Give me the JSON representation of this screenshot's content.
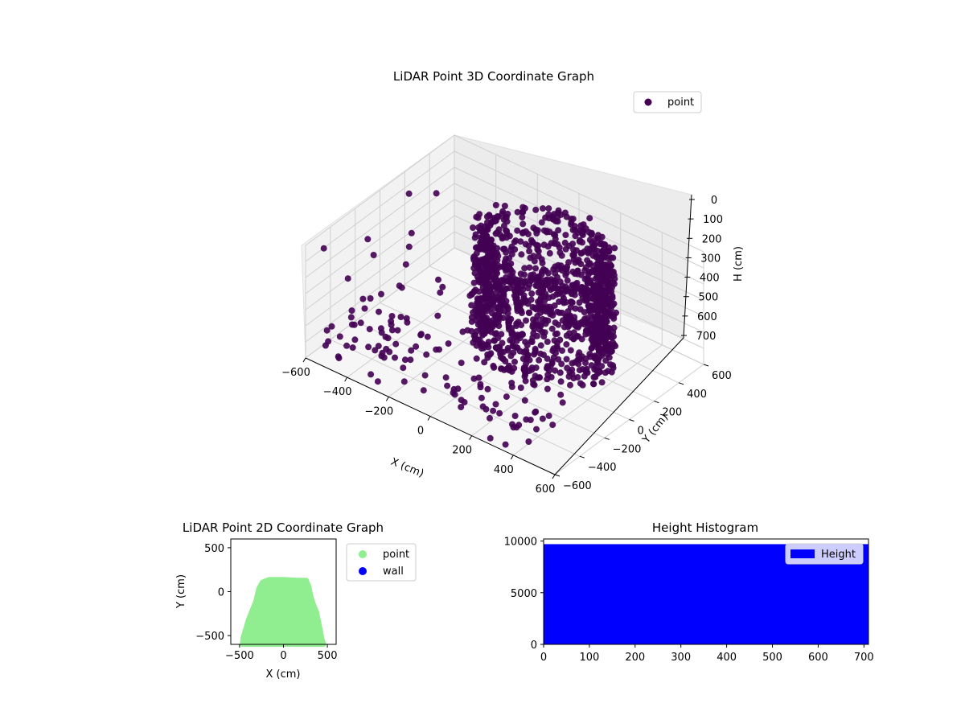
{
  "colors": {
    "point3d": "#440154",
    "point2d": "#90ee90",
    "wall": "#0000ff",
    "histogram": "#0000ff"
  },
  "chart_data": [
    {
      "type": "scatter3d",
      "title": "LiDAR Point 3D Coordinate Graph",
      "xlabel": "X (cm)",
      "ylabel": "Y (cm)",
      "zlabel": "H (cm)",
      "xlim": [
        -600,
        600
      ],
      "ylim": [
        -600,
        600
      ],
      "zlim": [
        0,
        700
      ],
      "zaxis_inverted": true,
      "x_ticks": [
        "−600",
        "−400",
        "−200",
        "0",
        "200",
        "400",
        "600"
      ],
      "y_ticks": [
        "−600",
        "−400",
        "−200",
        "0",
        "200",
        "400",
        "600"
      ],
      "z_ticks": [
        "0",
        "100",
        "200",
        "300",
        "400",
        "500",
        "600",
        "700"
      ],
      "grid": true,
      "legend": {
        "placement": "top-right",
        "entries": [
          "point"
        ]
      },
      "series": [
        {
          "name": "point",
          "description_points": "dense cylindrical cluster of points",
          "cluster": {
            "center_x": 0,
            "center_y": 0,
            "radius": 300,
            "h_range": [
              0,
              700
            ]
          },
          "scattered_sample": [
            [
              -560,
              -520,
              40
            ],
            [
              -480,
              -300,
              60
            ],
            [
              -420,
              -560,
              120
            ],
            [
              -380,
              -420,
              30
            ],
            [
              -340,
              -200,
              80
            ],
            [
              -300,
              -580,
              160
            ],
            [
              -260,
              -360,
              50
            ],
            [
              -220,
              -480,
              90
            ],
            [
              -160,
              -560,
              20
            ],
            [
              -120,
              -300,
              140
            ],
            [
              -60,
              -420,
              70
            ],
            [
              0,
              -540,
              110
            ],
            [
              60,
              -380,
              40
            ],
            [
              120,
              -500,
              150
            ],
            [
              180,
              -320,
              60
            ],
            [
              240,
              -560,
              30
            ],
            [
              300,
              -440,
              90
            ],
            [
              360,
              -300,
              130
            ],
            [
              420,
              -520,
              50
            ],
            [
              480,
              -380,
              80
            ],
            [
              -520,
              100,
              30
            ],
            [
              -460,
              220,
              60
            ],
            [
              -400,
              -80,
              100
            ],
            [
              520,
              -200,
              40
            ],
            [
              460,
              40,
              70
            ],
            [
              -200,
              -200,
              200
            ],
            [
              100,
              -220,
              180
            ],
            [
              -20,
              -150,
              240
            ]
          ]
        }
      ]
    },
    {
      "type": "scatter",
      "title": "LiDAR Point 2D Coordinate Graph",
      "xlabel": "X (cm)",
      "ylabel": "Y (cm)",
      "xlim": [
        -600,
        600
      ],
      "ylim": [
        -600,
        600
      ],
      "x_ticks": [
        "−500",
        "0",
        "500"
      ],
      "y_ticks": [
        "−500",
        "0",
        "500"
      ],
      "legend": {
        "placement": "outside-right",
        "entries": [
          "point",
          "wall"
        ]
      },
      "series": [
        {
          "name": "point",
          "outline": [
            [
              -470,
              -600
            ],
            [
              -460,
              -520
            ],
            [
              -430,
              -420
            ],
            [
              -400,
              -320
            ],
            [
              -360,
              -220
            ],
            [
              -320,
              -120
            ],
            [
              -300,
              -40
            ],
            [
              -280,
              40
            ],
            [
              -240,
              110
            ],
            [
              -160,
              140
            ],
            [
              0,
              140
            ],
            [
              160,
              130
            ],
            [
              260,
              130
            ],
            [
              290,
              60
            ],
            [
              310,
              -40
            ],
            [
              340,
              -140
            ],
            [
              380,
              -240
            ],
            [
              400,
              -340
            ],
            [
              420,
              -440
            ],
            [
              440,
              -540
            ],
            [
              460,
              -600
            ]
          ]
        },
        {
          "name": "wall",
          "values": []
        }
      ]
    },
    {
      "type": "bar",
      "title": "Height Histogram",
      "xlim": [
        0,
        710
      ],
      "ylim": [
        0,
        10200
      ],
      "x_ticks": [
        "0",
        "100",
        "200",
        "300",
        "400",
        "500",
        "600",
        "700"
      ],
      "y_ticks": [
        "0",
        "5000",
        "10000"
      ],
      "legend": {
        "placement": "top-right",
        "entries": [
          "Height"
        ]
      },
      "series": [
        {
          "name": "Height",
          "bin_range": [
            0,
            710
          ],
          "count": 9700
        }
      ]
    }
  ]
}
